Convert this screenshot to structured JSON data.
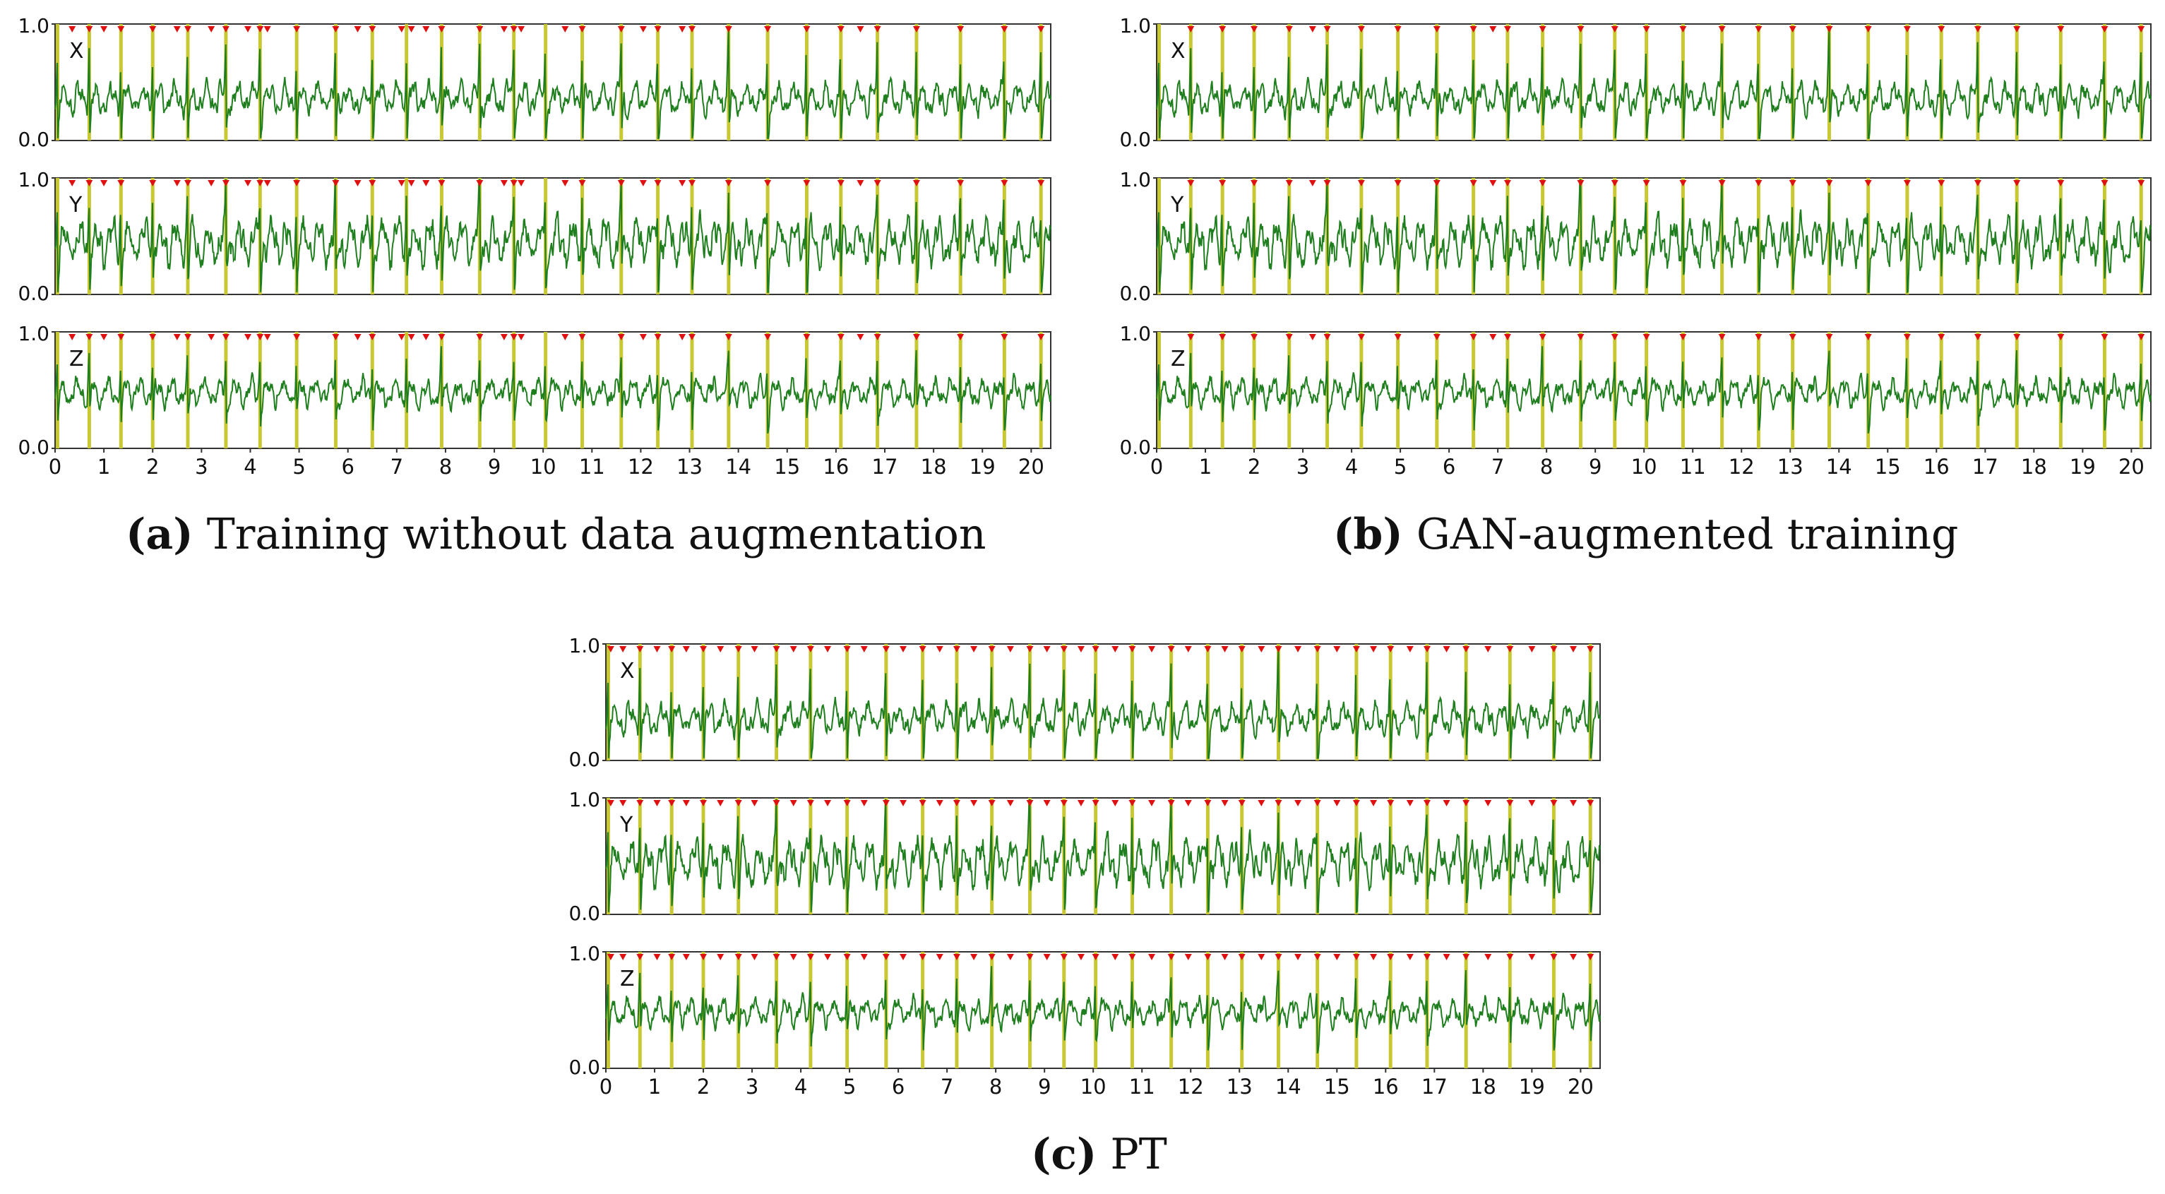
{
  "colors": {
    "signal": "#1f7f1f",
    "segment": "#c8c832",
    "marker": "#e01010",
    "axis": "#333333",
    "text": "#111111"
  },
  "captions": {
    "a": {
      "label": "(a)",
      "text": "Training without data augmentation"
    },
    "b": {
      "label": "(b)",
      "text": "GAN-augmented training"
    },
    "c": {
      "label": "(c)",
      "text": "PT"
    }
  },
  "chart_data": [
    {
      "id": "a",
      "type": "line",
      "title": "Training without data augmentation",
      "xlabel": "",
      "ylabel": "",
      "xlim": [
        0,
        20.4
      ],
      "ylim": [
        0,
        1
      ],
      "x_ticks": [
        0,
        1,
        2,
        3,
        4,
        5,
        6,
        7,
        8,
        9,
        10,
        11,
        12,
        13,
        14,
        15,
        16,
        17,
        18,
        19,
        20
      ],
      "y_ticks": [
        "0.0",
        "1.0"
      ],
      "series": [
        {
          "name": "X",
          "seed": 11,
          "noise": 0.09,
          "base": 0.36,
          "spike": 0.45
        },
        {
          "name": "Y",
          "seed": 23,
          "noise": 0.13,
          "base": 0.45,
          "spike": 0.45
        },
        {
          "name": "Z",
          "seed": 37,
          "noise": 0.08,
          "base": 0.48,
          "spike": 0.3
        }
      ],
      "segment_boundaries": [
        0.05,
        0.7,
        1.35,
        2.0,
        2.72,
        3.5,
        4.2,
        4.95,
        5.75,
        6.5,
        7.2,
        7.92,
        8.7,
        9.4,
        10.05,
        10.8,
        11.6,
        12.35,
        13.05,
        13.8,
        14.6,
        15.4,
        16.1,
        16.85,
        17.65,
        18.55,
        19.45,
        20.2
      ],
      "detected_markers": [
        0.35,
        0.7,
        1.0,
        1.35,
        2.0,
        2.5,
        2.72,
        3.2,
        3.5,
        3.95,
        4.2,
        4.35,
        4.95,
        5.75,
        6.2,
        6.5,
        7.1,
        7.3,
        7.6,
        7.92,
        8.7,
        9.2,
        9.4,
        9.55,
        10.45,
        10.8,
        11.6,
        12.05,
        12.35,
        12.85,
        13.05,
        13.8,
        14.6,
        15.4,
        16.1,
        16.5,
        16.85,
        17.65,
        18.55,
        19.45,
        20.2
      ]
    },
    {
      "id": "b",
      "type": "line",
      "title": "GAN-augmented training",
      "xlabel": "",
      "ylabel": "",
      "xlim": [
        0,
        20.4
      ],
      "ylim": [
        0,
        1
      ],
      "x_ticks": [
        0,
        1,
        2,
        3,
        4,
        5,
        6,
        7,
        8,
        9,
        10,
        11,
        12,
        13,
        14,
        15,
        16,
        17,
        18,
        19,
        20
      ],
      "y_ticks": [
        "0.0",
        "1.0"
      ],
      "series": [
        {
          "name": "X",
          "seed": 11,
          "noise": 0.09,
          "base": 0.36,
          "spike": 0.45
        },
        {
          "name": "Y",
          "seed": 23,
          "noise": 0.13,
          "base": 0.45,
          "spike": 0.45
        },
        {
          "name": "Z",
          "seed": 37,
          "noise": 0.08,
          "base": 0.48,
          "spike": 0.3
        }
      ],
      "segment_boundaries": [
        0.05,
        0.7,
        1.35,
        2.0,
        2.72,
        3.5,
        4.2,
        4.95,
        5.75,
        6.5,
        7.2,
        7.92,
        8.7,
        9.4,
        10.05,
        10.8,
        11.6,
        12.35,
        13.05,
        13.8,
        14.6,
        15.4,
        16.1,
        16.85,
        17.65,
        18.55,
        19.45,
        20.2
      ],
      "detected_markers": [
        0.7,
        1.35,
        2.0,
        2.72,
        3.2,
        3.5,
        4.2,
        4.95,
        5.75,
        6.5,
        6.9,
        7.2,
        7.92,
        8.7,
        9.4,
        10.05,
        10.8,
        11.6,
        12.35,
        13.05,
        13.8,
        14.6,
        15.4,
        16.1,
        16.85,
        17.65,
        18.55,
        19.45,
        20.2
      ]
    },
    {
      "id": "c",
      "type": "line",
      "title": "PT",
      "xlabel": "",
      "ylabel": "",
      "xlim": [
        0,
        20.4
      ],
      "ylim": [
        0,
        1
      ],
      "x_ticks": [
        0,
        1,
        2,
        3,
        4,
        5,
        6,
        7,
        8,
        9,
        10,
        11,
        12,
        13,
        14,
        15,
        16,
        17,
        18,
        19,
        20
      ],
      "y_ticks": [
        "0.0",
        "1.0"
      ],
      "series": [
        {
          "name": "X",
          "seed": 11,
          "noise": 0.09,
          "base": 0.36,
          "spike": 0.45
        },
        {
          "name": "Y",
          "seed": 23,
          "noise": 0.13,
          "base": 0.45,
          "spike": 0.45
        },
        {
          "name": "Z",
          "seed": 37,
          "noise": 0.08,
          "base": 0.48,
          "spike": 0.3
        }
      ],
      "segment_boundaries": [
        0.05,
        0.7,
        1.35,
        2.0,
        2.72,
        3.5,
        4.2,
        4.95,
        5.75,
        6.5,
        7.2,
        7.92,
        8.7,
        9.4,
        10.05,
        10.8,
        11.6,
        12.35,
        13.05,
        13.8,
        14.6,
        15.4,
        16.1,
        16.85,
        17.65,
        18.55,
        19.45,
        20.2
      ],
      "detected_markers": [
        0.1,
        0.35,
        0.7,
        1.05,
        1.35,
        1.65,
        2.0,
        2.35,
        2.72,
        3.05,
        3.5,
        3.85,
        4.2,
        4.55,
        4.95,
        5.3,
        5.75,
        6.1,
        6.5,
        6.85,
        7.2,
        7.55,
        7.92,
        8.3,
        8.7,
        9.05,
        9.4,
        9.75,
        10.05,
        10.45,
        10.8,
        11.2,
        11.6,
        11.95,
        12.35,
        12.7,
        13.05,
        13.45,
        13.8,
        14.2,
        14.6,
        15.0,
        15.4,
        15.75,
        16.1,
        16.5,
        16.85,
        17.25,
        17.65,
        18.1,
        18.55,
        19.0,
        19.45,
        19.85,
        20.2
      ]
    }
  ]
}
